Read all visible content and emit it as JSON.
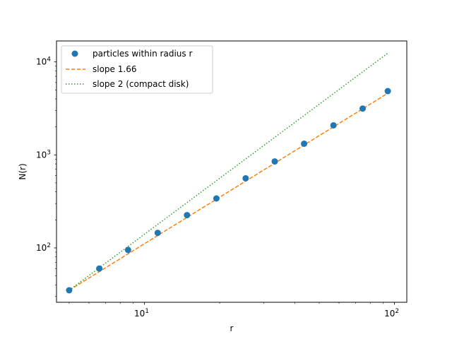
{
  "chart_data": {
    "type": "scatter",
    "xlabel": "r",
    "ylabel": "N(r)",
    "xscale": "log",
    "yscale": "log",
    "xlim": [
      4.45,
      112
    ],
    "ylim": [
      26,
      16800
    ],
    "grid": false,
    "legend_position": "top-left",
    "x_ticks": [
      {
        "value": 10,
        "label": "10",
        "exp": "1"
      },
      {
        "value": 100,
        "label": "10",
        "exp": "2"
      }
    ],
    "y_ticks": [
      {
        "value": 100,
        "label": "10",
        "exp": "2"
      },
      {
        "value": 1000,
        "label": "10",
        "exp": "3"
      },
      {
        "value": 10000,
        "label": "10",
        "exp": "4"
      }
    ],
    "series": [
      {
        "name": "particles within radius r",
        "kind": "points",
        "color": "#1f77b4",
        "x": [
          5.0,
          6.6,
          8.6,
          11.3,
          14.8,
          19.4,
          25.4,
          33.2,
          43.5,
          57.0,
          74.6,
          94.0
        ],
        "y": [
          35,
          60,
          95,
          145,
          225,
          340,
          560,
          850,
          1320,
          2080,
          3150,
          4850
        ]
      },
      {
        "name": "slope 1.66",
        "kind": "line",
        "style": "dashed",
        "color": "#ff7f0e",
        "x": [
          5.0,
          94.0
        ],
        "y": [
          35,
          4600
        ]
      },
      {
        "name": "slope 2 (compact disk)",
        "kind": "line",
        "style": "dotted",
        "color": "#2ca02c",
        "x": [
          5.0,
          94.0
        ],
        "y": [
          35,
          12400
        ]
      }
    ]
  }
}
